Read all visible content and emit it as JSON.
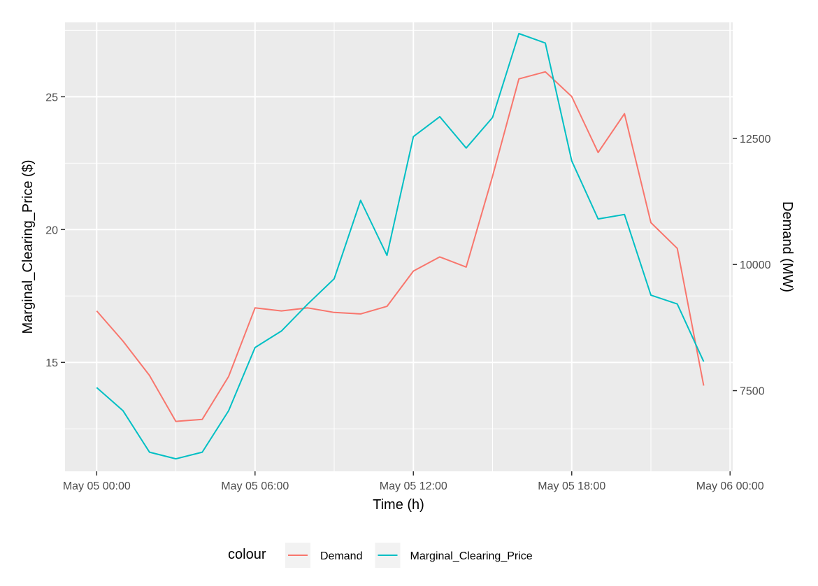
{
  "chart_data": {
    "type": "line",
    "xlabel": "Time (h)",
    "ylabel_left": "Marginal_Clearing_Price ($)",
    "ylabel_right": "Demand (MW)",
    "x_start": "May 05 00:00",
    "x_step_hours": 1,
    "x_ticks": [
      "May 05 00:00",
      "May 05 06:00",
      "May 05 12:00",
      "May 05 18:00",
      "May 06 00:00"
    ],
    "x_range_hours": [
      -1.2,
      24.1
    ],
    "ylim_left": [
      10.9,
      27.8
    ],
    "ylim_right": [
      5900,
      14800
    ],
    "left_ticks": [
      15,
      20,
      25
    ],
    "right_ticks": [
      7500,
      10000,
      12500
    ],
    "grid": true,
    "legend_position": "bottom",
    "legend_title": "colour",
    "colors": {
      "Demand": "#f8766d",
      "Marginal_Clearing_Price": "#00bfc4"
    },
    "series": [
      {
        "name": "Demand",
        "axis": "right",
        "values": [
          9080,
          8480,
          7800,
          6890,
          6930,
          7780,
          9140,
          9080,
          9140,
          9050,
          9020,
          9170,
          9870,
          10150,
          9950,
          11750,
          13680,
          13820,
          13330,
          12220,
          12990,
          10830,
          10320,
          7600
        ]
      },
      {
        "name": "Marginal_Clearing_Price",
        "axis": "left",
        "values": [
          14.05,
          13.18,
          11.62,
          11.37,
          11.62,
          13.18,
          15.56,
          16.18,
          17.2,
          18.15,
          21.1,
          19.03,
          23.5,
          24.25,
          23.07,
          24.22,
          27.38,
          27.02,
          22.59,
          20.4,
          20.57,
          17.53,
          17.2,
          15.03
        ]
      }
    ]
  }
}
